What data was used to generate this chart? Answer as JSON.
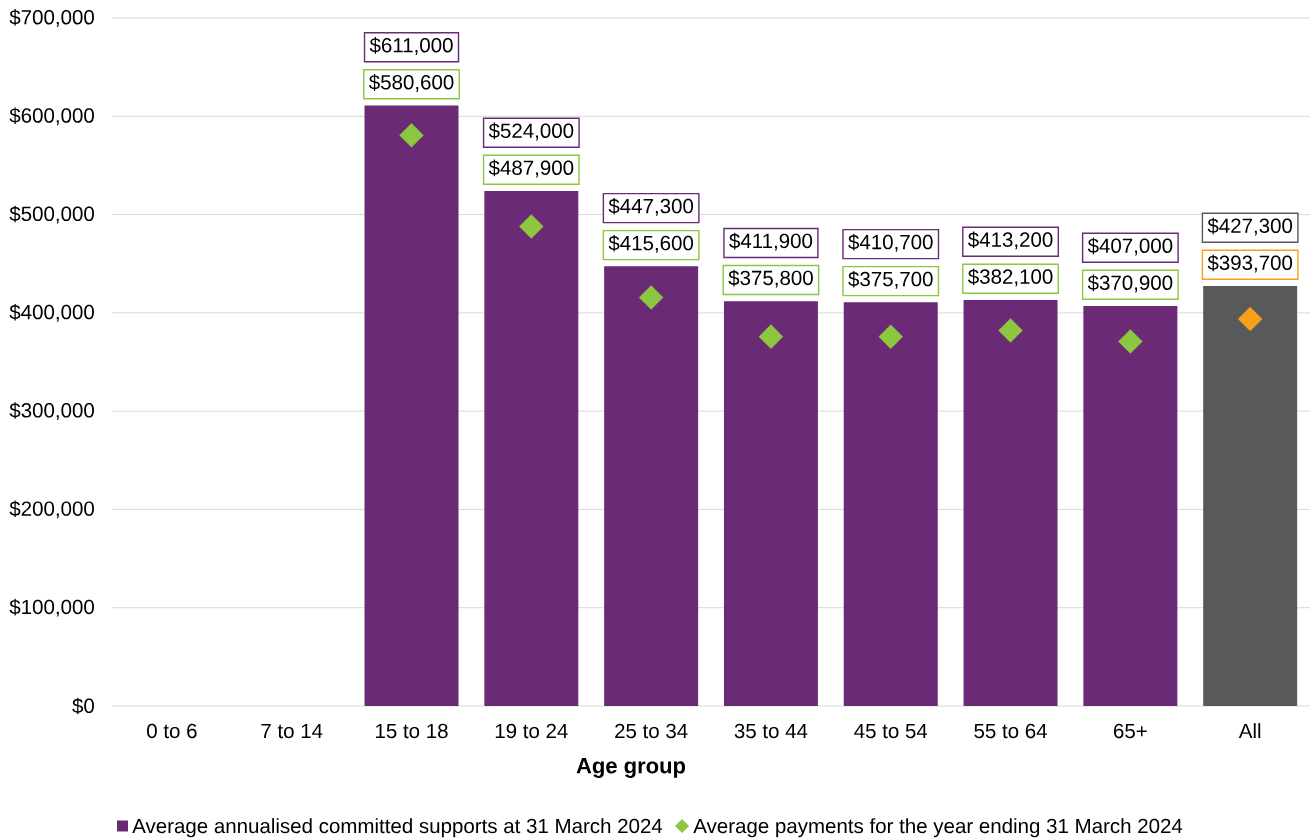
{
  "chart_data": {
    "type": "bar",
    "xlabel": "Age group",
    "categories": [
      "0 to 6",
      "7 to 14",
      "15 to 18",
      "19 to 24",
      "25 to 34",
      "35 to 44",
      "45 to 54",
      "55 to 64",
      "65+",
      "All"
    ],
    "series": [
      {
        "name": "Average annualised committed supports at 31 March 2024",
        "color": "#6b2a75",
        "colors": [
          "#6b2a75",
          "#6b2a75",
          "#6b2a75",
          "#6b2a75",
          "#6b2a75",
          "#6b2a75",
          "#6b2a75",
          "#6b2a75",
          "#6b2a75",
          "#58595b"
        ],
        "values": [
          null,
          null,
          611000,
          524000,
          447300,
          411900,
          410700,
          413200,
          407000,
          427300
        ],
        "value_labels": [
          null,
          null,
          "$611,000",
          "$524,000",
          "$447,300",
          "$411,900",
          "$410,700",
          "$413,200",
          "$407,000",
          "$427,300"
        ]
      },
      {
        "name": "Average payments for the year ending 31 March 2024",
        "type": "scatter",
        "marker": "diamond",
        "color": "#8dc63f",
        "colors": [
          "#8dc63f",
          "#8dc63f",
          "#8dc63f",
          "#8dc63f",
          "#8dc63f",
          "#8dc63f",
          "#8dc63f",
          "#8dc63f",
          "#8dc63f",
          "#f6a01a"
        ],
        "x": [
          "0 to 6",
          "7 to 14",
          "15 to 18",
          "19 to 24",
          "25 to 34",
          "35 to 44",
          "45 to 54",
          "55 to 64",
          "65+",
          "All"
        ],
        "values": [
          null,
          null,
          580600,
          487900,
          415600,
          375800,
          375700,
          382100,
          370900,
          393700
        ],
        "value_labels": [
          null,
          null,
          "$580,600",
          "$487,900",
          "$415,600",
          "$375,800",
          "$375,700",
          "$382,100",
          "$370,900",
          "$393,700"
        ]
      }
    ],
    "ylim": [
      0,
      700000
    ],
    "yticks": [
      {
        "value": 0,
        "label": "$0"
      },
      {
        "value": 100000,
        "label": "$100,000"
      },
      {
        "value": 200000,
        "label": "$200,000"
      },
      {
        "value": 300000,
        "label": "$300,000"
      },
      {
        "value": 400000,
        "label": "$400,000"
      },
      {
        "value": 500000,
        "label": "$500,000"
      },
      {
        "value": 600000,
        "label": "$600,000"
      },
      {
        "value": 700000,
        "label": "$700,000"
      }
    ],
    "grid": "y",
    "legend": "bottom"
  }
}
